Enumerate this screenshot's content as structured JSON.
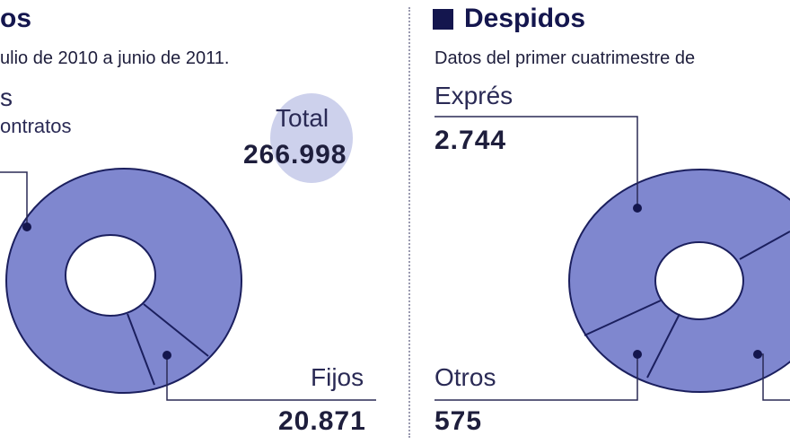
{
  "colors": {
    "ring": "#7f87cf",
    "ring_stroke": "#1b1f5e",
    "bubble": "#cdd1ec",
    "ink": "#14164e"
  },
  "left": {
    "title": "os",
    "subtitle": "ulio de 2010 a junio de 2011.",
    "label_top_1": "s",
    "label_top_2": "ontratos",
    "total_label": "Total",
    "total_value": "266.998",
    "bottom_label": "Fijos",
    "bottom_value": "20.871"
  },
  "right": {
    "title": "Despidos",
    "subtitle": "Datos del primer cuatrimestre de",
    "top_label": "Exprés",
    "top_value": "2.744",
    "bottom_label": "Otros",
    "bottom_value": "575"
  },
  "chart_data": [
    {
      "type": "pie",
      "title": "",
      "total": 266998,
      "slices": [
        {
          "label": "",
          "value": 246127
        },
        {
          "label": "Fijos",
          "value": 20871
        }
      ]
    },
    {
      "type": "pie",
      "title": "Despidos",
      "slices": [
        {
          "label": "Exprés",
          "value": 2744
        },
        {
          "label": "Otros",
          "value": 575
        },
        {
          "label": "",
          "value": null
        }
      ]
    }
  ]
}
